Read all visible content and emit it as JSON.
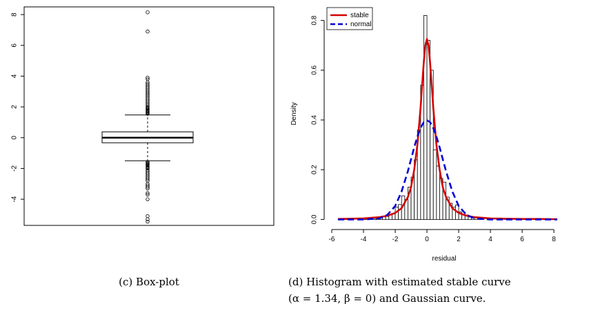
{
  "captions": {
    "left": "(c) Box-plot",
    "right_line1": "(d) Histogram with estimated stable curve",
    "right_line2": "(α = 1.34, β = 0) and Gaussian curve."
  },
  "chart_data": [
    {
      "type": "box",
      "ylim": [
        -5.7,
        8.5
      ],
      "yticks": [
        -4,
        -2,
        0,
        2,
        4,
        6,
        8
      ],
      "ytick_labels": [
        "-4",
        "-2",
        "0",
        "2",
        "4",
        "6",
        "8"
      ],
      "box": {
        "q1": -0.33,
        "median": 0.0,
        "q3": 0.38,
        "whisker_low": -1.5,
        "whisker_high": 1.48
      },
      "outliers": [
        8.15,
        6.9,
        3.9,
        3.8,
        3.6,
        3.5,
        3.4,
        3.3,
        3.2,
        3.1,
        3.0,
        2.9,
        2.8,
        2.7,
        2.6,
        2.5,
        2.4,
        2.3,
        2.2,
        2.1,
        2.0,
        1.95,
        1.9,
        1.85,
        1.8,
        1.75,
        1.7,
        1.65,
        1.6,
        1.55,
        -1.58,
        -1.63,
        -1.68,
        -1.73,
        -1.78,
        -1.83,
        -1.9,
        -1.95,
        -2.0,
        -2.1,
        -2.2,
        -2.3,
        -2.4,
        -2.5,
        -2.6,
        -2.7,
        -2.8,
        -3.0,
        -3.1,
        -3.2,
        -3.3,
        -3.6,
        -3.7,
        -4.0,
        -5.1,
        -5.3,
        -5.45
      ]
    },
    {
      "type": "histogram",
      "xlabel": "residual",
      "ylabel": "Density",
      "xlim": [
        -6,
        8.3
      ],
      "ylim": [
        -0.01,
        0.86
      ],
      "xticks": [
        -6,
        -4,
        -2,
        0,
        2,
        4,
        6,
        8
      ],
      "xtick_labels": [
        "-6",
        "-4",
        "-2",
        "0",
        "2",
        "4",
        "6",
        "8"
      ],
      "yticks": [
        0.0,
        0.2,
        0.4,
        0.6,
        0.8
      ],
      "ytick_labels": [
        "0.0",
        "0.2",
        "0.4",
        "0.6",
        "0.8"
      ],
      "bins": [
        {
          "x0": -5.6,
          "x1": -5.4,
          "density": 0.002
        },
        {
          "x0": -5.2,
          "x1": -5.0,
          "density": 0.004
        },
        {
          "x0": -4.0,
          "x1": -3.8,
          "density": 0.002
        },
        {
          "x0": -3.6,
          "x1": -3.4,
          "density": 0.002
        },
        {
          "x0": -3.4,
          "x1": -3.2,
          "density": 0.004
        },
        {
          "x0": -3.2,
          "x1": -3.0,
          "density": 0.004
        },
        {
          "x0": -3.0,
          "x1": -2.8,
          "density": 0.008
        },
        {
          "x0": -2.8,
          "x1": -2.6,
          "density": 0.01
        },
        {
          "x0": -2.6,
          "x1": -2.4,
          "density": 0.012
        },
        {
          "x0": -2.4,
          "x1": -2.2,
          "density": 0.018
        },
        {
          "x0": -2.2,
          "x1": -2.0,
          "density": 0.022
        },
        {
          "x0": -2.0,
          "x1": -1.8,
          "density": 0.05
        },
        {
          "x0": -1.8,
          "x1": -1.6,
          "density": 0.06
        },
        {
          "x0": -1.6,
          "x1": -1.4,
          "density": 0.095
        },
        {
          "x0": -1.4,
          "x1": -1.2,
          "density": 0.08
        },
        {
          "x0": -1.2,
          "x1": -1.0,
          "density": 0.13
        },
        {
          "x0": -1.0,
          "x1": -0.8,
          "density": 0.17
        },
        {
          "x0": -0.8,
          "x1": -0.6,
          "density": 0.24
        },
        {
          "x0": -0.6,
          "x1": -0.4,
          "density": 0.36
        },
        {
          "x0": -0.4,
          "x1": -0.2,
          "density": 0.54
        },
        {
          "x0": -0.2,
          "x1": 0.0,
          "density": 0.82
        },
        {
          "x0": 0.0,
          "x1": 0.2,
          "density": 0.72
        },
        {
          "x0": 0.2,
          "x1": 0.4,
          "density": 0.6
        },
        {
          "x0": 0.4,
          "x1": 0.6,
          "density": 0.28
        },
        {
          "x0": 0.6,
          "x1": 0.8,
          "density": 0.215
        },
        {
          "x0": 0.8,
          "x1": 1.0,
          "density": 0.165
        },
        {
          "x0": 1.0,
          "x1": 1.2,
          "density": 0.15
        },
        {
          "x0": 1.2,
          "x1": 1.4,
          "density": 0.09
        },
        {
          "x0": 1.4,
          "x1": 1.6,
          "density": 0.065
        },
        {
          "x0": 1.6,
          "x1": 1.8,
          "density": 0.05
        },
        {
          "x0": 1.8,
          "x1": 2.0,
          "density": 0.058
        },
        {
          "x0": 2.0,
          "x1": 2.2,
          "density": 0.03
        },
        {
          "x0": 2.2,
          "x1": 2.4,
          "density": 0.02
        },
        {
          "x0": 2.4,
          "x1": 2.6,
          "density": 0.018
        },
        {
          "x0": 2.6,
          "x1": 2.8,
          "density": 0.01
        },
        {
          "x0": 2.8,
          "x1": 3.0,
          "density": 0.008
        },
        {
          "x0": 3.0,
          "x1": 3.2,
          "density": 0.006
        },
        {
          "x0": 3.2,
          "x1": 3.4,
          "density": 0.005
        },
        {
          "x0": 3.4,
          "x1": 3.6,
          "density": 0.004
        },
        {
          "x0": 3.8,
          "x1": 4.0,
          "density": 0.006
        },
        {
          "x0": 4.8,
          "x1": 5.0,
          "density": 0.002
        },
        {
          "x0": 5.6,
          "x1": 5.8,
          "density": 0.002
        },
        {
          "x0": 6.8,
          "x1": 7.0,
          "density": 0.002
        },
        {
          "x0": 8.0,
          "x1": 8.2,
          "density": 0.002
        }
      ],
      "series": [
        {
          "name": "stable",
          "color": "#d40000",
          "style": "solid",
          "x": [
            -5.6,
            -4,
            -3,
            -2.5,
            -2,
            -1.6,
            -1.2,
            -1.0,
            -0.8,
            -0.6,
            -0.4,
            -0.3,
            -0.2,
            -0.1,
            0.0,
            0.1,
            0.2,
            0.3,
            0.4,
            0.6,
            0.8,
            1.0,
            1.2,
            1.6,
            2.0,
            2.5,
            3,
            4,
            5,
            6,
            7,
            8.2
          ],
          "y": [
            0.002,
            0.004,
            0.009,
            0.015,
            0.026,
            0.045,
            0.09,
            0.13,
            0.2,
            0.3,
            0.45,
            0.54,
            0.63,
            0.7,
            0.725,
            0.7,
            0.63,
            0.54,
            0.45,
            0.3,
            0.2,
            0.13,
            0.09,
            0.045,
            0.026,
            0.015,
            0.009,
            0.004,
            0.003,
            0.002,
            0.002,
            0.001
          ]
        },
        {
          "name": "normal",
          "color": "#0000d6",
          "style": "dashed",
          "x": [
            -5.6,
            -4,
            -3,
            -2.5,
            -2,
            -1.6,
            -1.2,
            -1.0,
            -0.8,
            -0.6,
            -0.4,
            -0.2,
            0.0,
            0.2,
            0.4,
            0.6,
            0.8,
            1.0,
            1.2,
            1.6,
            2.0,
            2.5,
            3,
            4,
            5,
            6,
            7,
            8.2
          ],
          "y": [
            0.0,
            0.0,
            0.004,
            0.018,
            0.054,
            0.112,
            0.194,
            0.242,
            0.29,
            0.333,
            0.368,
            0.391,
            0.399,
            0.391,
            0.368,
            0.333,
            0.29,
            0.242,
            0.194,
            0.112,
            0.054,
            0.018,
            0.004,
            0.0,
            0.0,
            0.0,
            0.0,
            0.0
          ]
        }
      ],
      "legend": {
        "placement": "top-left"
      }
    }
  ]
}
